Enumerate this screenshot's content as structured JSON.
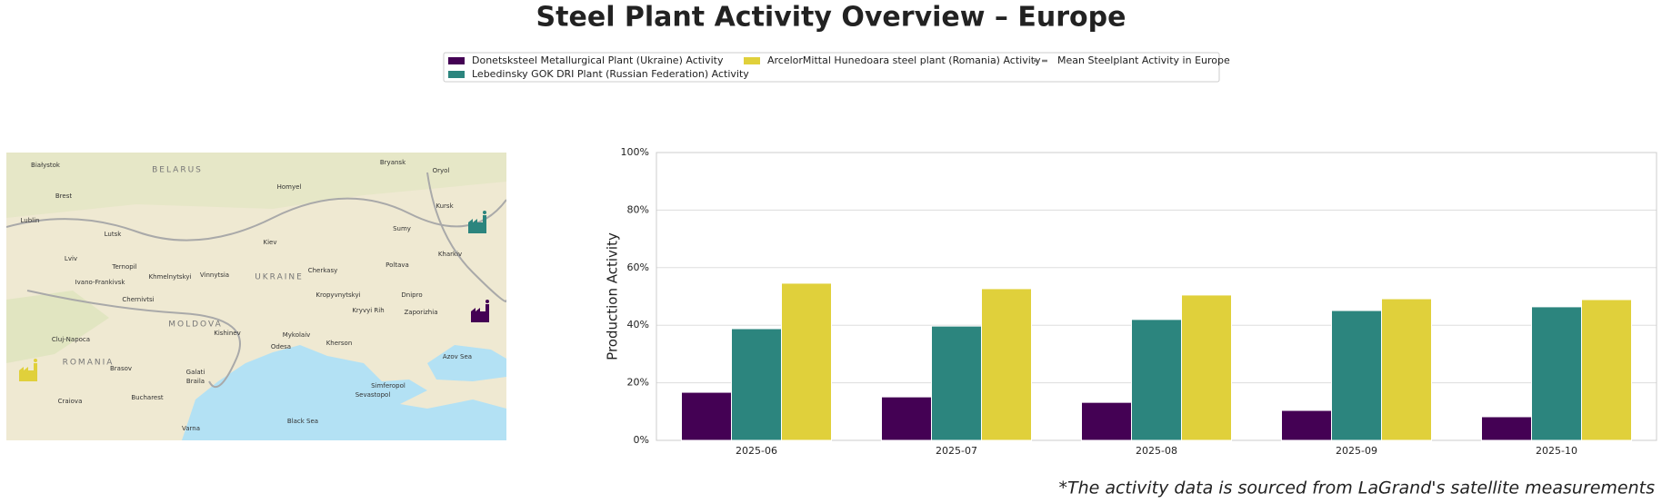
{
  "title": "Steel Plant Activity Overview – Europe",
  "footnote": "*The activity data is sourced from LaGrand's satellite measurements",
  "map": {
    "labels": [
      "Białystok",
      "BELARUS",
      "Bryansk",
      "Oryol",
      "Brest",
      "Homyel",
      "Kursk",
      "Lublin",
      "Lutsk",
      "Sumy",
      "Kiev",
      "Lviv",
      "Kharkiv",
      "Ternopil",
      "Khmelnytskyi",
      "Vinnytsia",
      "UKRAINE",
      "Cherkasy",
      "Poltava",
      "Ivano-Frankivsk",
      "Dnipro",
      "Kropyvnytskyi",
      "Chernivtsi",
      "Kryvyi Rih",
      "Zaporizhia",
      "MOLDOVA",
      "Kishinev",
      "Mykolaiv",
      "Odesa",
      "Kherson",
      "Cluj-Napoca",
      "ROMANIA",
      "Brasov",
      "Galati",
      "Braila",
      "Simferopol",
      "Sevastopol",
      "Azov Sea",
      "Craiova",
      "Bucharest",
      "Black Sea",
      "Varna"
    ]
  },
  "chart_data": {
    "type": "bar",
    "ylabel": "Production Activity",
    "categories": [
      "2025-06",
      "2025-07",
      "2025-08",
      "2025-09",
      "2025-10"
    ],
    "series": [
      {
        "name": "Donetsksteel Metallurgical Plant (Ukraine) Activity",
        "color": "#440154",
        "values": [
          16.7,
          15.1,
          13.2,
          10.4,
          8.2
        ]
      },
      {
        "name": "Lebedinsky GOK DRI Plant (Russian Federation) Activity",
        "color": "#2c857e",
        "values": [
          38.8,
          39.7,
          42.0,
          45.1,
          46.4
        ]
      },
      {
        "name": "ArcelorMittal Hunedoara steel plant (Romania) Activity",
        "color": "#e0d03b",
        "values": [
          54.6,
          52.7,
          50.5,
          49.2,
          48.9
        ]
      },
      {
        "name": "Mean Steelplant Activity in Europe",
        "color": "#808080",
        "style": "dashed",
        "values": [
          null,
          null,
          null,
          null,
          null
        ]
      }
    ],
    "ylim": [
      0,
      100
    ],
    "yticks": [
      {
        "value": 0,
        "label": "0%"
      },
      {
        "value": 20,
        "label": "20%"
      },
      {
        "value": 40,
        "label": "40%"
      },
      {
        "value": 60,
        "label": "60%"
      },
      {
        "value": 80,
        "label": "80%"
      },
      {
        "value": 100,
        "label": "100%"
      }
    ],
    "grid": true
  }
}
